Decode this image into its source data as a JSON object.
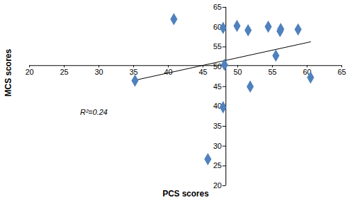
{
  "chart_data": {
    "type": "scatter",
    "x_label": "PCS scores",
    "y_label": "MCS scores",
    "annotation": "R²=0.24",
    "x": [
      35.2,
      40.8,
      47.9,
      48.1,
      49.9,
      51.5,
      54.4,
      56.2,
      56.1,
      58.7,
      55.5,
      51.8,
      47.9,
      45.7,
      60.5
    ],
    "values": [
      46.5,
      62.0,
      59.8,
      50.5,
      60.3,
      59.2,
      60.1,
      59.5,
      59.0,
      59.4,
      52.8,
      45.0,
      39.8,
      26.7,
      47.3
    ],
    "color": "#4f81bd",
    "marker": "diamond",
    "xlim": [
      20,
      65
    ],
    "xticks": [
      20,
      25,
      30,
      35,
      40,
      45,
      50,
      55,
      60,
      65
    ],
    "ylim": [
      20,
      65
    ],
    "yticks": [
      20,
      25,
      30,
      35,
      40,
      45,
      50,
      55,
      60,
      65
    ],
    "grid": false
  }
}
